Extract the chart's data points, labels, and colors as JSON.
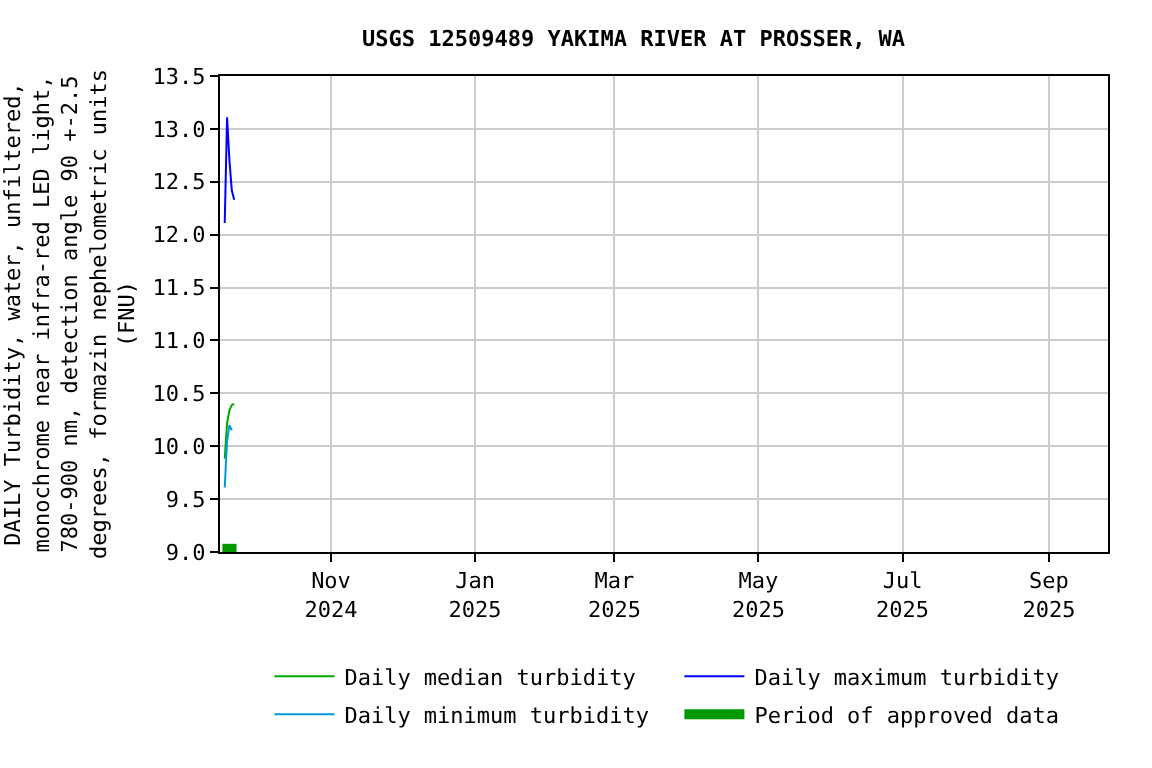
{
  "chart_data": {
    "type": "line",
    "title": "USGS 12509489 YAKIMA RIVER AT PROSSER, WA",
    "ylabel": "DAILY Turbidity, water, unfiltered,\nmonochrome near infra-red LED light,\n780-900 nm, detection angle 90 +-2.5\ndegrees, formazin nephelometric units\n(FNU)",
    "x": [
      "2024-09-17",
      "2024-09-18",
      "2024-09-19",
      "2024-09-20",
      "2024-09-21"
    ],
    "series": [
      {
        "name": "Daily median turbidity",
        "color": "#00aa00",
        "values": [
          9.88,
          10.22,
          10.34,
          10.39,
          10.4
        ]
      },
      {
        "name": "Daily maximum turbidity",
        "color": "#0000ff",
        "values": [
          12.11,
          13.11,
          12.7,
          12.42,
          12.33
        ]
      },
      {
        "name": "Daily minimum turbidity",
        "color": "#0099dd",
        "values": [
          9.61,
          10.05,
          10.2,
          10.15,
          null
        ]
      },
      {
        "name": "Period of approved data",
        "color": "#009900",
        "x": [
          "2024-09-16",
          "2024-09-22"
        ],
        "values": [
          9.03,
          9.03
        ]
      }
    ],
    "xlim": [
      "2024-09-15",
      "2025-09-26"
    ],
    "xticks": [
      {
        "value": "2024-11-01",
        "label": "Nov\n2024"
      },
      {
        "value": "2025-01-01",
        "label": "Jan\n2025"
      },
      {
        "value": "2025-03-01",
        "label": "Mar\n2025"
      },
      {
        "value": "2025-05-01",
        "label": "May\n2025"
      },
      {
        "value": "2025-07-01",
        "label": "Jul\n2025"
      },
      {
        "value": "2025-09-01",
        "label": "Sep\n2025"
      }
    ],
    "ylim": [
      9.0,
      13.5
    ],
    "yticks": [
      {
        "value": 9.0,
        "label": "9.0"
      },
      {
        "value": 9.5,
        "label": "9.5"
      },
      {
        "value": 10.0,
        "label": "10.0"
      },
      {
        "value": 10.5,
        "label": "10.5"
      },
      {
        "value": 11.0,
        "label": "11.0"
      },
      {
        "value": 11.5,
        "label": "11.5"
      },
      {
        "value": 12.0,
        "label": "12.0"
      },
      {
        "value": 12.5,
        "label": "12.5"
      },
      {
        "value": 13.0,
        "label": "13.0"
      },
      {
        "value": 13.5,
        "label": "13.5"
      }
    ],
    "grid": true,
    "legend": "bottom",
    "marker": "none",
    "line_style": "solid"
  }
}
